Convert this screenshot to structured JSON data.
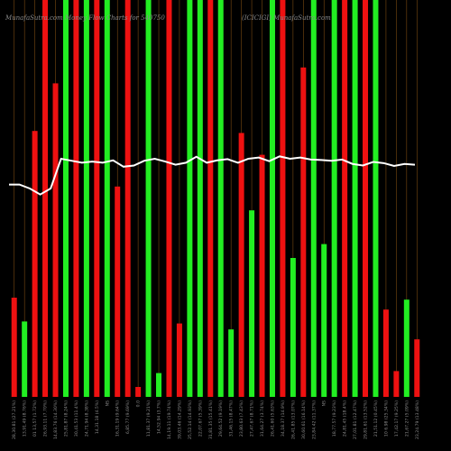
{
  "header": {
    "left_title": "MunafaSutra.com Money Flow Charts for 540750",
    "right_title": "(ICICIGI) MunafaSutra.com"
  },
  "chart_data": {
    "type": "bar",
    "title": "MunafaSutra.com Money Flow Charts for 540750 (ICICIGI) MunafaSutra.com",
    "value_scale": "fraction of full bar height",
    "colors": {
      "up": "#22ee22",
      "down": "#ee1111",
      "grid": "#7a4a12",
      "line": "#ffffff"
    },
    "bars": [
      {
        "color": "down",
        "value": 0.25
      },
      {
        "color": "up",
        "value": 0.19
      },
      {
        "color": "down",
        "value": 0.67
      },
      {
        "color": "down",
        "value": 1.0
      },
      {
        "color": "down",
        "value": 0.79
      },
      {
        "color": "up",
        "value": 1.0
      },
      {
        "color": "down",
        "value": 1.0
      },
      {
        "color": "up",
        "value": 1.0
      },
      {
        "color": "down",
        "value": 1.0
      },
      {
        "color": "up",
        "value": 1.0
      },
      {
        "color": "down",
        "value": 0.53
      },
      {
        "color": "down",
        "value": 1.0
      },
      {
        "color": "down",
        "value": 0.025
      },
      {
        "color": "up",
        "value": 1.0
      },
      {
        "color": "up",
        "value": 0.06
      },
      {
        "color": "down",
        "value": 1.0
      },
      {
        "color": "down",
        "value": 0.185
      },
      {
        "color": "up",
        "value": 1.0
      },
      {
        "color": "up",
        "value": 1.0
      },
      {
        "color": "down",
        "value": 1.0
      },
      {
        "color": "up",
        "value": 1.0
      },
      {
        "color": "up",
        "value": 0.17
      },
      {
        "color": "down",
        "value": 0.665
      },
      {
        "color": "up",
        "value": 0.47
      },
      {
        "color": "down",
        "value": 0.61
      },
      {
        "color": "up",
        "value": 1.0
      },
      {
        "color": "down",
        "value": 1.0
      },
      {
        "color": "up",
        "value": 0.35
      },
      {
        "color": "down",
        "value": 0.83
      },
      {
        "color": "up",
        "value": 1.0
      },
      {
        "color": "up",
        "value": 0.385
      },
      {
        "color": "up",
        "value": 1.0
      },
      {
        "color": "down",
        "value": 1.0
      },
      {
        "color": "up",
        "value": 1.0
      },
      {
        "color": "down",
        "value": 1.0
      },
      {
        "color": "up",
        "value": 1.0
      },
      {
        "color": "down",
        "value": 0.22
      },
      {
        "color": "down",
        "value": 0.065
      },
      {
        "color": "up",
        "value": 0.245
      },
      {
        "color": "down",
        "value": 0.145
      }
    ],
    "line": [
      0.535,
      0.535,
      0.525,
      0.51,
      0.525,
      0.6,
      0.595,
      0.59,
      0.593,
      0.59,
      0.596,
      0.58,
      0.583,
      0.595,
      0.6,
      0.593,
      0.585,
      0.59,
      0.605,
      0.59,
      0.596,
      0.599,
      0.59,
      0.6,
      0.603,
      0.594,
      0.606,
      0.6,
      0.603,
      0.598,
      0.597,
      0.595,
      0.598,
      0.587,
      0.583,
      0.592,
      0.589,
      0.582,
      0.587,
      0.585
    ],
    "xtick_labels": [
      "28,30.81 (27.21%)",
      "13,91.49 (8.76%)",
      "01 13,57 (1.72%)",
      "26,93.11 (7.70%)",
      "14,83.76 (14.30%)",
      "25,81.87 (8.24%)",
      "30,41.53 (11.4%)",
      "24,71.94 (8.38%)",
      "14,31.18 (4.5%)",
      "NS",
      "16,31.19 (9.64%)",
      "6,85.77 (9.69%)",
      "0.0",
      "11,81.37 (9.21%)",
      "14,52.94 (3.7%)",
      "14,19.11 (19.74%)",
      "39,03.46 (14.29%)",
      "25,52.14 (14.93%)",
      "22,07.67 (5.39%)",
      "31,81.35 (15.41%)",
      "29,64.52 (9.19%)",
      "31,46.15 (8.47%)",
      "23,80.63 (7.43%)",
      "27,47.67 (8.71%)",
      "31,64.27 (3.74%)",
      "26,41.60 (5.63%)",
      "34,18.37 (14.9%)",
      "26,41.85 (13.07%)",
      "30,60.61 (16.14%)",
      "23,84.42 (11.37%)",
      "NS",
      "18,77.57 (9.23%)",
      "24,81.45 (18.4%)",
      "27,01.81 (12.47%)",
      "29,81.61 (13.52%)",
      "21,51.12 (0.45%)",
      "10 6.98 (25.34%)",
      "17,42.17 (9.25%)",
      "21,67.27 (5.09%)",
      "23,24.79 (13.48%)"
    ]
  }
}
